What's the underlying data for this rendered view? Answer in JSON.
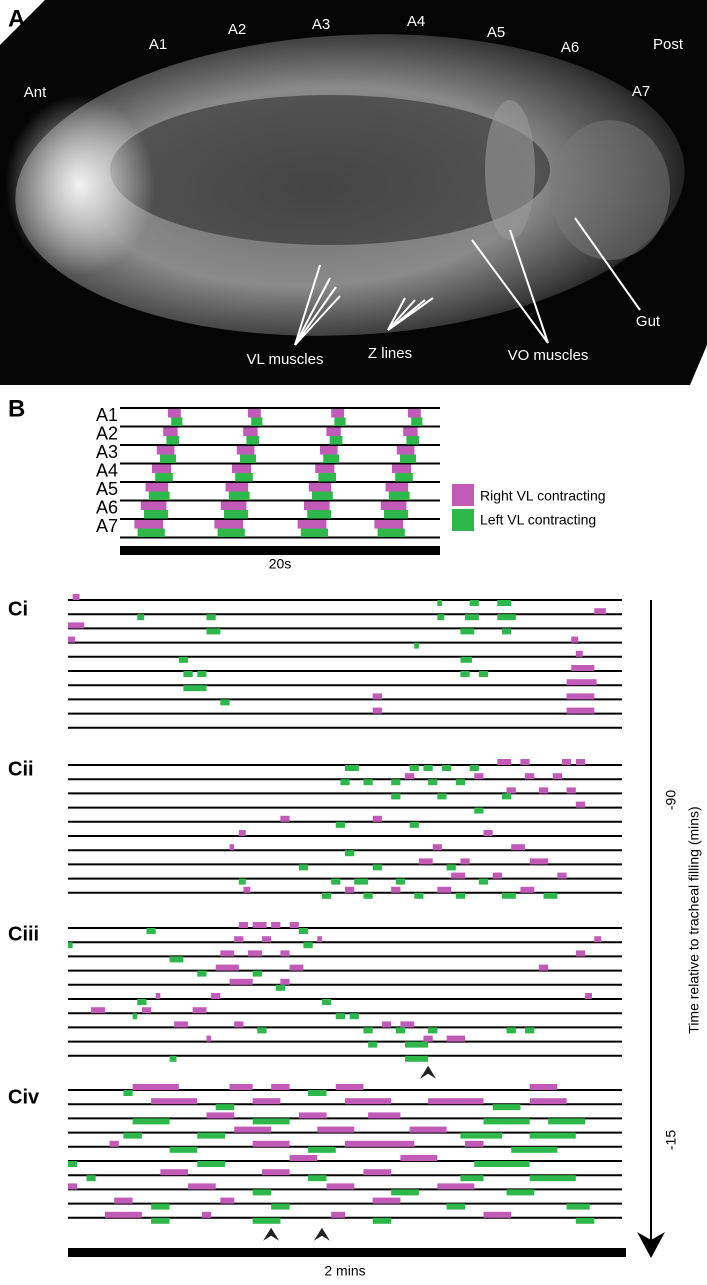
{
  "panel_a": {
    "label": "A",
    "annotations": [
      "Ant",
      "A1",
      "A2",
      "A3",
      "A4",
      "A5",
      "A6",
      "Post",
      "A7",
      "VL muscles",
      "Z lines",
      "VO muscles",
      "Gut"
    ]
  },
  "panel_b": {
    "label": "B",
    "rows": [
      "A1",
      "A2",
      "A3",
      "A4",
      "A5",
      "A6",
      "A7"
    ],
    "xlim": [
      0,
      20
    ],
    "legend": [
      {
        "name": "Right VL contracting",
        "color": "#c25bb8"
      },
      {
        "name": "Left VL contracting",
        "color": "#2eb84b"
      }
    ],
    "scale_label": "20s",
    "right": [
      [
        0,
        3.0,
        3.8
      ],
      [
        1,
        2.7,
        3.6
      ],
      [
        2,
        2.3,
        3.4
      ],
      [
        3,
        2.0,
        3.2
      ],
      [
        4,
        1.6,
        3.0
      ],
      [
        5,
        1.3,
        2.9
      ],
      [
        6,
        0.9,
        2.7
      ],
      [
        0,
        8.0,
        8.8
      ],
      [
        1,
        7.7,
        8.6
      ],
      [
        2,
        7.3,
        8.4
      ],
      [
        3,
        7.0,
        8.2
      ],
      [
        4,
        6.6,
        8.0
      ],
      [
        5,
        6.3,
        7.9
      ],
      [
        6,
        5.9,
        7.7
      ],
      [
        0,
        13.2,
        14.0
      ],
      [
        1,
        12.9,
        13.8
      ],
      [
        2,
        12.5,
        13.6
      ],
      [
        3,
        12.2,
        13.4
      ],
      [
        4,
        11.8,
        13.2
      ],
      [
        5,
        11.5,
        13.1
      ],
      [
        6,
        11.1,
        12.9
      ],
      [
        0,
        18.0,
        18.8
      ],
      [
        1,
        17.7,
        18.6
      ],
      [
        2,
        17.3,
        18.4
      ],
      [
        3,
        17.0,
        18.2
      ],
      [
        4,
        16.6,
        18.0
      ],
      [
        5,
        16.3,
        17.9
      ],
      [
        6,
        15.9,
        17.7
      ]
    ],
    "left": [
      [
        0,
        3.2,
        3.9
      ],
      [
        1,
        2.9,
        3.7
      ],
      [
        2,
        2.5,
        3.5
      ],
      [
        3,
        2.2,
        3.3
      ],
      [
        4,
        1.8,
        3.1
      ],
      [
        5,
        1.5,
        3.0
      ],
      [
        6,
        1.1,
        2.8
      ],
      [
        0,
        8.2,
        8.9
      ],
      [
        1,
        7.9,
        8.7
      ],
      [
        2,
        7.5,
        8.5
      ],
      [
        3,
        7.2,
        8.3
      ],
      [
        4,
        6.8,
        8.1
      ],
      [
        5,
        6.5,
        8.0
      ],
      [
        6,
        6.1,
        7.8
      ],
      [
        0,
        13.4,
        14.1
      ],
      [
        1,
        13.1,
        13.9
      ],
      [
        2,
        12.7,
        13.7
      ],
      [
        3,
        12.4,
        13.5
      ],
      [
        4,
        12.0,
        13.3
      ],
      [
        5,
        11.7,
        13.2
      ],
      [
        6,
        11.3,
        13.0
      ],
      [
        0,
        18.2,
        18.9
      ],
      [
        1,
        17.9,
        18.7
      ],
      [
        2,
        17.5,
        18.5
      ],
      [
        3,
        17.2,
        18.3
      ],
      [
        4,
        16.8,
        18.1
      ],
      [
        5,
        16.5,
        18.0
      ],
      [
        6,
        16.1,
        17.8
      ]
    ]
  },
  "panel_c": {
    "xlim": [
      0,
      120
    ],
    "scale_label": "2 mins",
    "time_axis": {
      "label": "Time relative to tracheal filling (mins)",
      "ticks": [
        -90,
        -15
      ]
    },
    "panels": [
      {
        "label": "Ci",
        "arrowheads": [],
        "right": [
          [
            0,
            1,
            2.5
          ],
          [
            2,
            0,
            3.5
          ],
          [
            3,
            0,
            1.5
          ],
          [
            1,
            114,
            116.5
          ],
          [
            3,
            109,
            110.5
          ],
          [
            4,
            110,
            111.5
          ],
          [
            5,
            109,
            114
          ],
          [
            6,
            108,
            114.5
          ],
          [
            7,
            108,
            114
          ],
          [
            8,
            108,
            114
          ],
          [
            7,
            66,
            68
          ],
          [
            8,
            66,
            68
          ]
        ],
        "left": [
          [
            1,
            15,
            16.5
          ],
          [
            1,
            30,
            32
          ],
          [
            2,
            30,
            33
          ],
          [
            4,
            24,
            26
          ],
          [
            5,
            25,
            27
          ],
          [
            5,
            28,
            30
          ],
          [
            6,
            25,
            30
          ],
          [
            7,
            33,
            35
          ],
          [
            0,
            80,
            81
          ],
          [
            1,
            80,
            81.5
          ],
          [
            0,
            87,
            89
          ],
          [
            0,
            93,
            96
          ],
          [
            1,
            86,
            89
          ],
          [
            1,
            93,
            97
          ],
          [
            2,
            94,
            96
          ],
          [
            3,
            75,
            76
          ],
          [
            4,
            85,
            87.5
          ],
          [
            5,
            85,
            87
          ],
          [
            5,
            89,
            91
          ],
          [
            2,
            85,
            88
          ]
        ]
      },
      {
        "label": "Cii",
        "arrowheads": [],
        "right": [
          [
            0,
            93,
            96
          ],
          [
            0,
            98,
            100
          ],
          [
            0,
            107,
            109
          ],
          [
            0,
            110,
            112
          ],
          [
            1,
            73,
            75
          ],
          [
            1,
            88,
            90
          ],
          [
            1,
            99,
            101
          ],
          [
            1,
            105,
            107
          ],
          [
            2,
            95,
            97
          ],
          [
            2,
            102,
            104
          ],
          [
            2,
            108,
            110
          ],
          [
            3,
            110,
            112
          ],
          [
            4,
            46,
            48
          ],
          [
            4,
            66,
            68
          ],
          [
            5,
            37,
            38.5
          ],
          [
            5,
            90,
            92
          ],
          [
            6,
            35,
            36
          ],
          [
            6,
            79,
            81
          ],
          [
            6,
            96,
            99
          ],
          [
            7,
            76,
            79
          ],
          [
            7,
            85,
            87
          ],
          [
            7,
            100,
            104
          ],
          [
            8,
            83,
            86
          ],
          [
            8,
            92,
            94
          ],
          [
            8,
            106,
            108
          ],
          [
            9,
            38,
            39.5
          ],
          [
            9,
            60,
            62
          ],
          [
            9,
            70,
            72
          ],
          [
            9,
            80,
            83
          ],
          [
            9,
            98,
            101
          ]
        ],
        "left": [
          [
            0,
            60,
            63
          ],
          [
            0,
            74,
            76
          ],
          [
            0,
            77,
            79
          ],
          [
            0,
            81,
            83
          ],
          [
            0,
            87,
            89
          ],
          [
            1,
            59,
            61
          ],
          [
            1,
            64,
            66
          ],
          [
            1,
            70,
            72
          ],
          [
            1,
            78,
            80
          ],
          [
            1,
            84,
            86
          ],
          [
            2,
            70,
            72
          ],
          [
            2,
            80,
            82
          ],
          [
            2,
            94,
            96
          ],
          [
            3,
            88,
            90
          ],
          [
            4,
            58,
            60
          ],
          [
            4,
            74,
            76
          ],
          [
            6,
            60,
            62
          ],
          [
            7,
            50,
            52
          ],
          [
            7,
            66,
            68
          ],
          [
            7,
            82,
            84
          ],
          [
            8,
            37,
            38.5
          ],
          [
            8,
            57,
            59
          ],
          [
            8,
            62,
            65
          ],
          [
            8,
            71,
            73
          ],
          [
            8,
            89,
            91
          ],
          [
            9,
            55,
            57
          ],
          [
            9,
            64,
            66
          ],
          [
            9,
            75,
            77
          ],
          [
            9,
            84,
            86
          ],
          [
            9,
            94,
            97
          ],
          [
            9,
            103,
            106
          ]
        ]
      },
      {
        "label": "Ciii",
        "arrowheads": [
          78
        ],
        "right": [
          [
            0,
            37,
            39
          ],
          [
            0,
            40,
            43
          ],
          [
            0,
            44,
            46
          ],
          [
            0,
            48,
            50
          ],
          [
            1,
            36,
            38
          ],
          [
            1,
            42,
            44
          ],
          [
            1,
            54,
            55
          ],
          [
            2,
            33,
            36
          ],
          [
            2,
            39,
            42
          ],
          [
            2,
            46,
            48
          ],
          [
            3,
            32,
            37
          ],
          [
            3,
            48,
            51
          ],
          [
            4,
            35,
            40
          ],
          [
            4,
            46,
            48
          ],
          [
            5,
            19,
            20
          ],
          [
            5,
            31,
            33
          ],
          [
            5,
            112,
            113.5
          ],
          [
            6,
            5,
            8
          ],
          [
            6,
            16,
            18
          ],
          [
            6,
            27,
            30
          ],
          [
            7,
            23,
            26
          ],
          [
            7,
            36,
            38
          ],
          [
            7,
            68,
            70
          ],
          [
            7,
            72,
            75
          ],
          [
            8,
            30,
            31
          ],
          [
            8,
            77,
            79
          ],
          [
            8,
            82,
            86
          ],
          [
            1,
            114,
            115.5
          ],
          [
            3,
            102,
            104
          ],
          [
            2,
            110,
            112
          ]
        ],
        "left": [
          [
            0,
            17,
            19
          ],
          [
            0,
            50,
            52
          ],
          [
            1,
            0,
            1
          ],
          [
            1,
            51,
            53
          ],
          [
            2,
            22,
            25
          ],
          [
            3,
            28,
            30
          ],
          [
            3,
            40,
            42
          ],
          [
            4,
            45,
            47
          ],
          [
            5,
            15,
            17
          ],
          [
            5,
            55,
            57
          ],
          [
            6,
            14,
            15
          ],
          [
            6,
            58,
            60
          ],
          [
            6,
            61,
            63
          ],
          [
            7,
            41,
            43
          ],
          [
            7,
            64,
            66
          ],
          [
            7,
            71,
            73
          ],
          [
            7,
            78,
            80
          ],
          [
            8,
            65,
            67
          ],
          [
            8,
            73,
            78
          ],
          [
            9,
            22,
            23.5
          ],
          [
            9,
            73,
            78
          ],
          [
            7,
            95,
            97
          ],
          [
            7,
            99,
            101
          ]
        ]
      },
      {
        "label": "Civ",
        "arrowheads": [
          44,
          55
        ],
        "right": [
          [
            0,
            14,
            24
          ],
          [
            0,
            35,
            40
          ],
          [
            0,
            44,
            48
          ],
          [
            0,
            58,
            64
          ],
          [
            0,
            100,
            106
          ],
          [
            1,
            18,
            28
          ],
          [
            1,
            40,
            46
          ],
          [
            1,
            60,
            70
          ],
          [
            1,
            78,
            90
          ],
          [
            1,
            100,
            108
          ],
          [
            2,
            30,
            36
          ],
          [
            2,
            50,
            56
          ],
          [
            2,
            65,
            72
          ],
          [
            3,
            36,
            44
          ],
          [
            3,
            54,
            62
          ],
          [
            3,
            74,
            82
          ],
          [
            4,
            9,
            11
          ],
          [
            4,
            40,
            48
          ],
          [
            4,
            60,
            75
          ],
          [
            4,
            86,
            90
          ],
          [
            5,
            48,
            54
          ],
          [
            5,
            72,
            80
          ],
          [
            6,
            20,
            26
          ],
          [
            6,
            42,
            48
          ],
          [
            6,
            64,
            70
          ],
          [
            7,
            0,
            2
          ],
          [
            7,
            26,
            32
          ],
          [
            7,
            56,
            62
          ],
          [
            7,
            80,
            88
          ],
          [
            8,
            10,
            14
          ],
          [
            8,
            33,
            36
          ],
          [
            8,
            66,
            72
          ],
          [
            9,
            8,
            16
          ],
          [
            9,
            29,
            31
          ],
          [
            9,
            57,
            60
          ],
          [
            9,
            90,
            96
          ]
        ],
        "left": [
          [
            0,
            12,
            14
          ],
          [
            0,
            52,
            56
          ],
          [
            1,
            32,
            36
          ],
          [
            1,
            92,
            98
          ],
          [
            2,
            14,
            22
          ],
          [
            2,
            40,
            48
          ],
          [
            2,
            90,
            100
          ],
          [
            2,
            104,
            112
          ],
          [
            3,
            12,
            16
          ],
          [
            3,
            28,
            34
          ],
          [
            3,
            85,
            94
          ],
          [
            3,
            100,
            110
          ],
          [
            4,
            22,
            28
          ],
          [
            4,
            52,
            58
          ],
          [
            4,
            96,
            106
          ],
          [
            5,
            0,
            2
          ],
          [
            5,
            28,
            34
          ],
          [
            5,
            88,
            100
          ],
          [
            6,
            4,
            6
          ],
          [
            6,
            52,
            56
          ],
          [
            6,
            85,
            90
          ],
          [
            6,
            100,
            110
          ],
          [
            7,
            40,
            44
          ],
          [
            7,
            70,
            76
          ],
          [
            7,
            95,
            101
          ],
          [
            8,
            18,
            22
          ],
          [
            8,
            44,
            48
          ],
          [
            8,
            82,
            86
          ],
          [
            8,
            108,
            113
          ],
          [
            9,
            18,
            22
          ],
          [
            9,
            40,
            46
          ],
          [
            9,
            66,
            70
          ],
          [
            9,
            110,
            114
          ]
        ]
      }
    ]
  }
}
